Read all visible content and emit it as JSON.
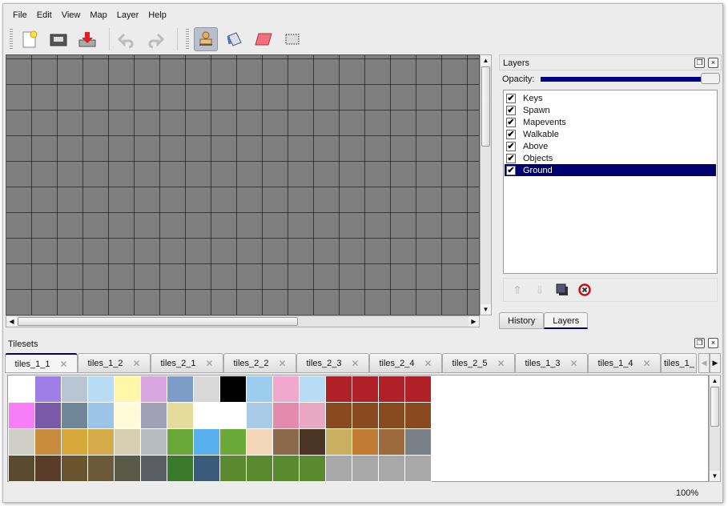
{
  "menu": [
    "File",
    "Edit",
    "View",
    "Map",
    "Layer",
    "Help"
  ],
  "toolbar": {
    "buttons": [
      {
        "name": "new-map",
        "icon": "new-file-icon"
      },
      {
        "name": "open",
        "icon": "folder-icon"
      },
      {
        "name": "save",
        "icon": "save-icon"
      },
      {
        "name": "undo",
        "icon": "undo-icon"
      },
      {
        "name": "redo",
        "icon": "redo-icon"
      },
      {
        "name": "stamp-brush",
        "icon": "stamp-icon",
        "active": true
      },
      {
        "name": "bucket-fill",
        "icon": "bucket-icon"
      },
      {
        "name": "eraser",
        "icon": "eraser-icon"
      },
      {
        "name": "rect-select",
        "icon": "select-icon"
      }
    ]
  },
  "layers_panel": {
    "title": "Layers",
    "opacity_label": "Opacity:",
    "opacity": 1.0,
    "layers": [
      {
        "name": "Keys",
        "visible": true
      },
      {
        "name": "Spawn",
        "visible": true
      },
      {
        "name": "Mapevents",
        "visible": true
      },
      {
        "name": "Walkable",
        "visible": true
      },
      {
        "name": "Above",
        "visible": true
      },
      {
        "name": "Objects",
        "visible": true
      },
      {
        "name": "Ground",
        "visible": true,
        "selected": true
      }
    ],
    "tabs": [
      "History",
      "Layers"
    ],
    "active_tab": "Layers"
  },
  "tilesets_panel": {
    "title": "Tilesets",
    "tabs": [
      "tiles_1_1",
      "tiles_1_2",
      "tiles_2_1",
      "tiles_2_2",
      "tiles_2_3",
      "tiles_2_4",
      "tiles_2_5",
      "tiles_1_3",
      "tiles_1_4",
      "tiles_1_"
    ],
    "active_tab": "tiles_1_1",
    "tile_colors": [
      "#ffffff",
      "#a07ee8",
      "#b7c6d2",
      "#b8dcf4",
      "#fff6a8",
      "#d8a6e0",
      "#7d9cc6",
      "#d8d8d8",
      "#000000",
      "#9cccee",
      "#f0a8cc",
      "#b8dcf4",
      "#b02028",
      "#b02028",
      "#b02028",
      "#b02028",
      "#f77ef7",
      "#7a5aa8",
      "#6f8798",
      "#9cc4e8",
      "#fffbd8",
      "#a0a0b8",
      "#e4dc9a",
      "#ffffff",
      "#ffffff",
      "#a8cce8",
      "#e48aaa",
      "#e8a8c4",
      "#8a4a20",
      "#8a4a20",
      "#8a4a20",
      "#8a4a20",
      "#cfcfc8",
      "#c98c3c",
      "#d9a83a",
      "#d6ac4a",
      "#d8ceb2",
      "#b4bcc0",
      "#6aa838",
      "#5ab0ec",
      "#6aa838",
      "#f4d6b8",
      "#8a6a4a",
      "#4a3424",
      "#c8b060",
      "#c07a34",
      "#9c6a3c",
      "#7a8088",
      "#5a4a30",
      "#5a3c28",
      "#6a5430",
      "#6a5a3a",
      "#5a5a48",
      "#5a5e64",
      "#3a7a2a",
      "#3a5c7a",
      "#5a8a30",
      "#5a8a30",
      "#5a8a30",
      "#5a8a30",
      "#a8a8a8",
      "#a8a8a8",
      "#a8a8a8",
      "#a8a8a8"
    ]
  },
  "status": {
    "zoom": "100%"
  }
}
